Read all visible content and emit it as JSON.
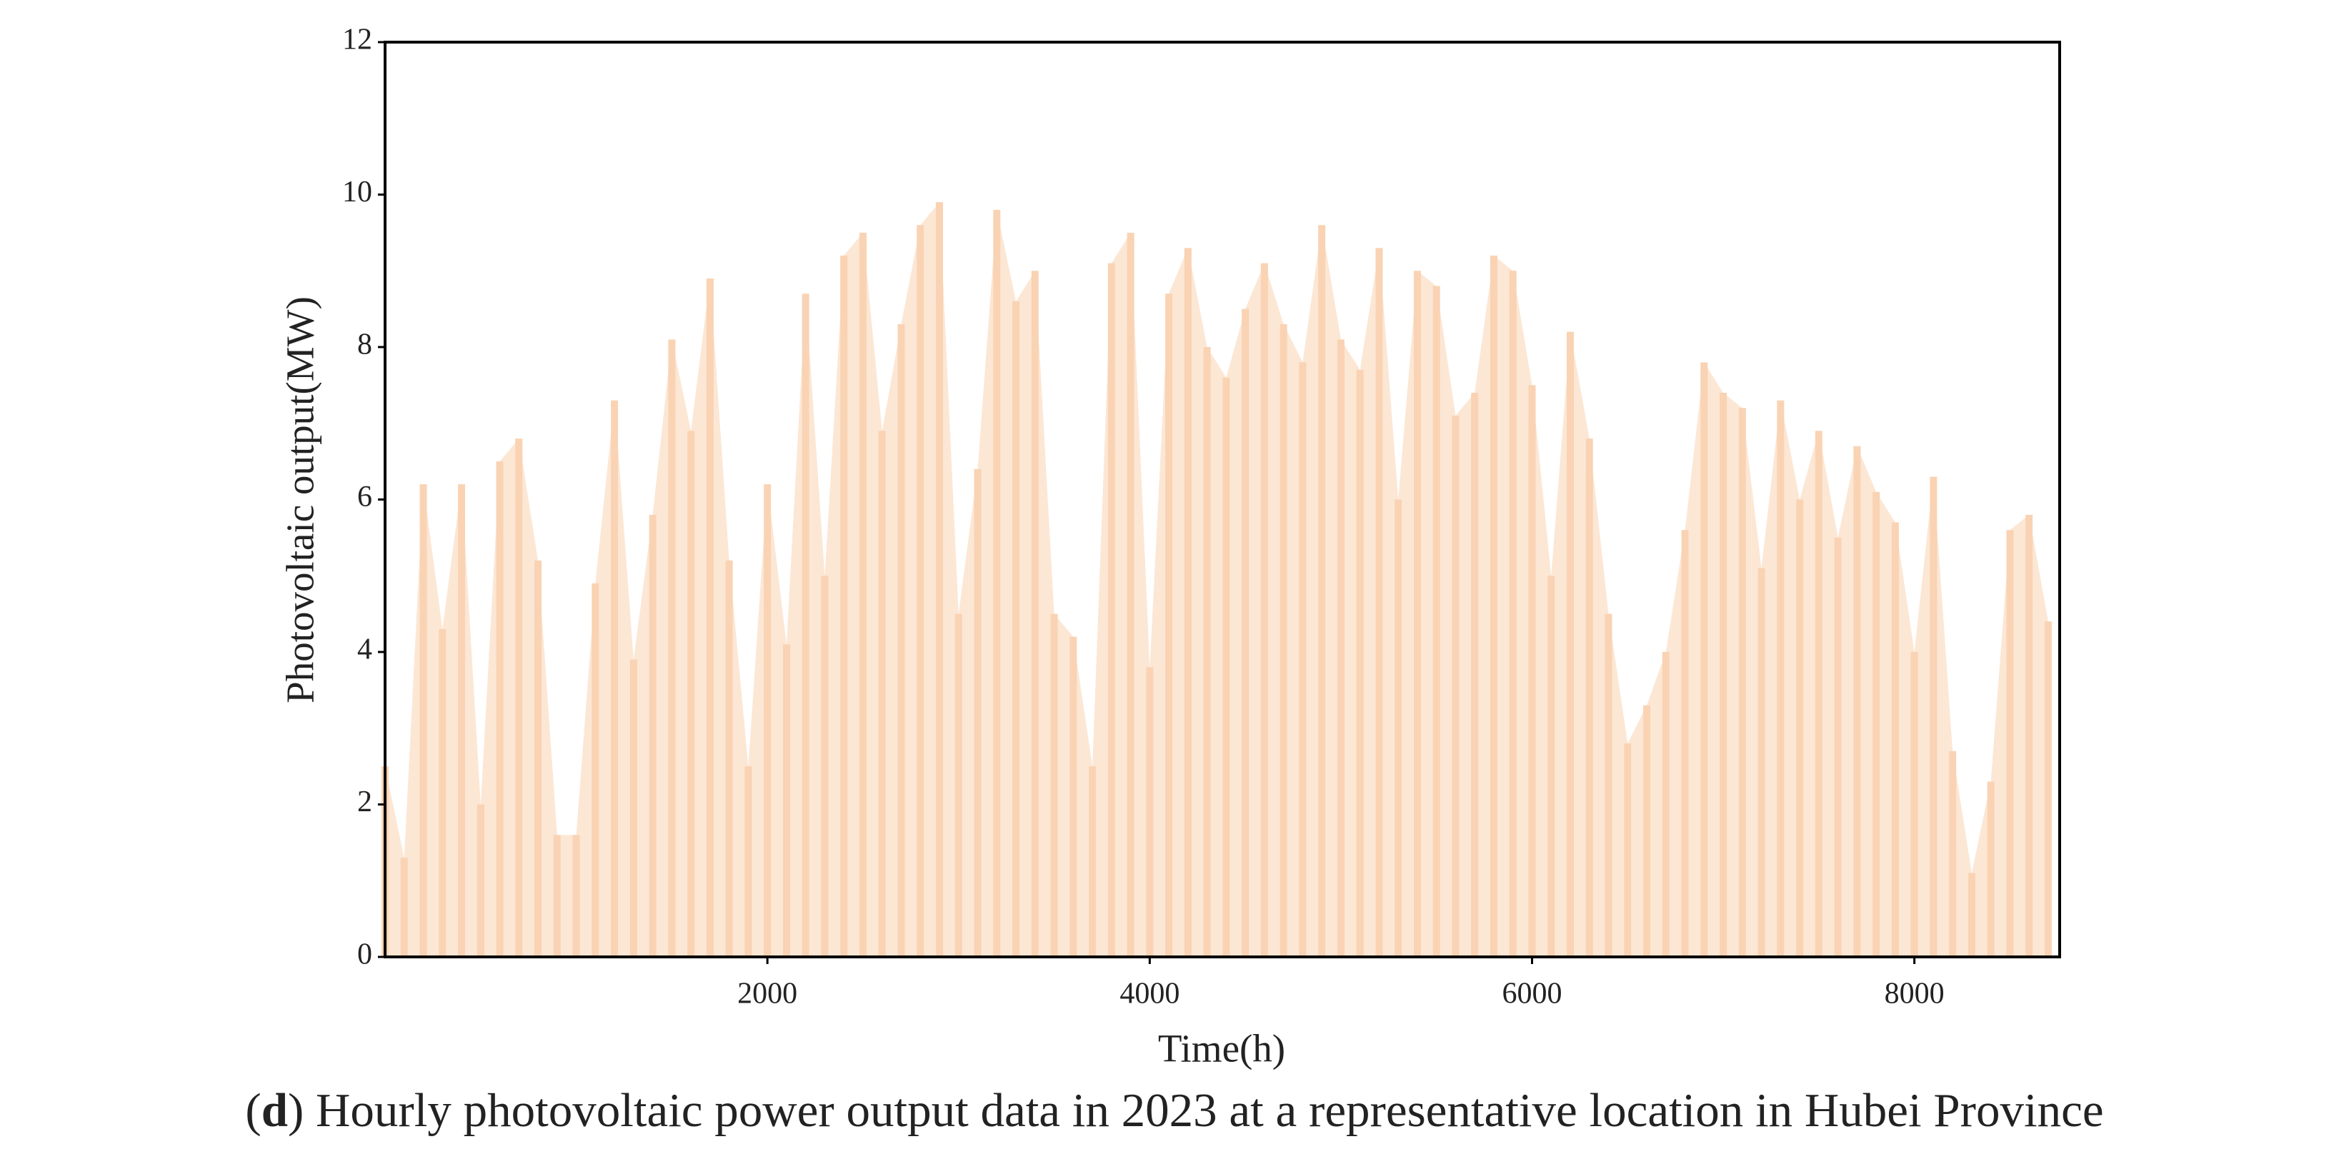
{
  "chart_data": {
    "type": "area",
    "x_label": "Time(h)",
    "y_label": "Photovoltaic output(MW)",
    "caption": [
      "(",
      "d",
      ") Hourly photovoltaic power output data in 2023 at a representative location in Hubei Province"
    ],
    "color": "#f9d3b3",
    "xlim": [
      0,
      8760
    ],
    "ylim": [
      0,
      12
    ],
    "xticks": [
      2000,
      4000,
      6000,
      8000
    ],
    "yticks": [
      0,
      2,
      4,
      6,
      8,
      10,
      12
    ],
    "x": [
      0,
      100,
      200,
      300,
      400,
      500,
      600,
      700,
      800,
      900,
      1000,
      1100,
      1200,
      1300,
      1400,
      1500,
      1600,
      1700,
      1800,
      1900,
      2000,
      2100,
      2200,
      2300,
      2400,
      2500,
      2600,
      2700,
      2800,
      2900,
      3000,
      3100,
      3200,
      3300,
      3400,
      3500,
      3600,
      3700,
      3800,
      3900,
      4000,
      4100,
      4200,
      4300,
      4400,
      4500,
      4600,
      4700,
      4800,
      4900,
      5000,
      5100,
      5200,
      5300,
      5400,
      5500,
      5600,
      5700,
      5800,
      5900,
      6000,
      6100,
      6200,
      6300,
      6400,
      6500,
      6600,
      6700,
      6800,
      6900,
      7000,
      7100,
      7200,
      7300,
      7400,
      7500,
      7600,
      7700,
      7800,
      7900,
      8000,
      8100,
      8200,
      8300,
      8400,
      8500,
      8600,
      8700
    ],
    "values": [
      2.5,
      1.3,
      6.2,
      4.3,
      6.2,
      2,
      6.5,
      6.8,
      5.2,
      1.6,
      1.6,
      4.9,
      7.3,
      3.9,
      5.8,
      8.1,
      6.9,
      8.9,
      5.2,
      2.5,
      6.2,
      4.1,
      8.7,
      5,
      9.2,
      9.5,
      6.9,
      8.3,
      9.6,
      9.9,
      4.5,
      6.4,
      9.8,
      8.6,
      9,
      4.5,
      4.2,
      2.5,
      9.1,
      9.5,
      3.8,
      8.7,
      9.3,
      8,
      7.6,
      8.5,
      9.1,
      8.3,
      7.8,
      9.6,
      8.1,
      7.7,
      9.3,
      6,
      9,
      8.8,
      7.1,
      7.4,
      9.2,
      9,
      7.5,
      5,
      8.2,
      6.8,
      4.5,
      2.8,
      3.3,
      4,
      5.6,
      7.8,
      7.4,
      7.2,
      5.1,
      7.3,
      6,
      6.9,
      5.5,
      6.7,
      6.1,
      5.7,
      4,
      6.3,
      2.7,
      1.1,
      2.3,
      5.6,
      5.8,
      4.4
    ]
  }
}
